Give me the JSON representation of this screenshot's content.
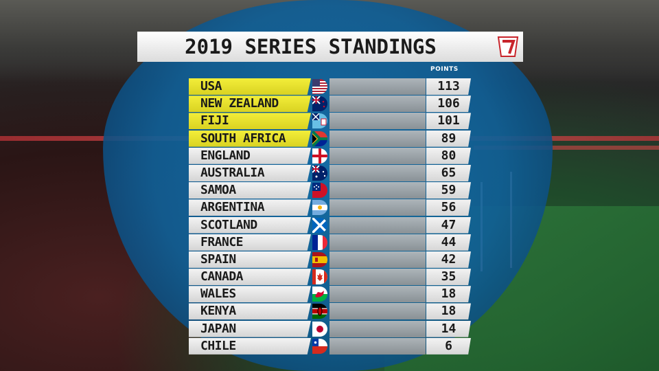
{
  "title": "2019 SERIES STANDINGS",
  "points_header": "POINTS",
  "highlight_color": "#ece62f",
  "standings": [
    {
      "team": "USA",
      "points": "113",
      "flag": "usa-flag-icon",
      "top": true
    },
    {
      "team": "NEW ZEALAND",
      "points": "106",
      "flag": "new-zealand-flag-icon",
      "top": true
    },
    {
      "team": "FIJI",
      "points": "101",
      "flag": "fiji-flag-icon",
      "top": true
    },
    {
      "team": "SOUTH AFRICA",
      "points": "89",
      "flag": "south-africa-flag-icon",
      "top": true
    },
    {
      "team": "ENGLAND",
      "points": "80",
      "flag": "england-flag-icon",
      "top": false
    },
    {
      "team": "AUSTRALIA",
      "points": "65",
      "flag": "australia-flag-icon",
      "top": false
    },
    {
      "team": "SAMOA",
      "points": "59",
      "flag": "samoa-flag-icon",
      "top": false
    },
    {
      "team": "ARGENTINA",
      "points": "56",
      "flag": "argentina-flag-icon",
      "top": false
    },
    {
      "team": "SCOTLAND",
      "points": "47",
      "flag": "scotland-flag-icon",
      "top": false
    },
    {
      "team": "FRANCE",
      "points": "44",
      "flag": "france-flag-icon",
      "top": false
    },
    {
      "team": "SPAIN",
      "points": "42",
      "flag": "spain-flag-icon",
      "top": false
    },
    {
      "team": "CANADA",
      "points": "35",
      "flag": "canada-flag-icon",
      "top": false
    },
    {
      "team": "WALES",
      "points": "18",
      "flag": "wales-flag-icon",
      "top": false
    },
    {
      "team": "KENYA",
      "points": "18",
      "flag": "kenya-flag-icon",
      "top": false
    },
    {
      "team": "JAPAN",
      "points": "14",
      "flag": "japan-flag-icon",
      "top": false
    },
    {
      "team": "CHILE",
      "points": "6",
      "flag": "chile-flag-icon",
      "top": false
    }
  ]
}
